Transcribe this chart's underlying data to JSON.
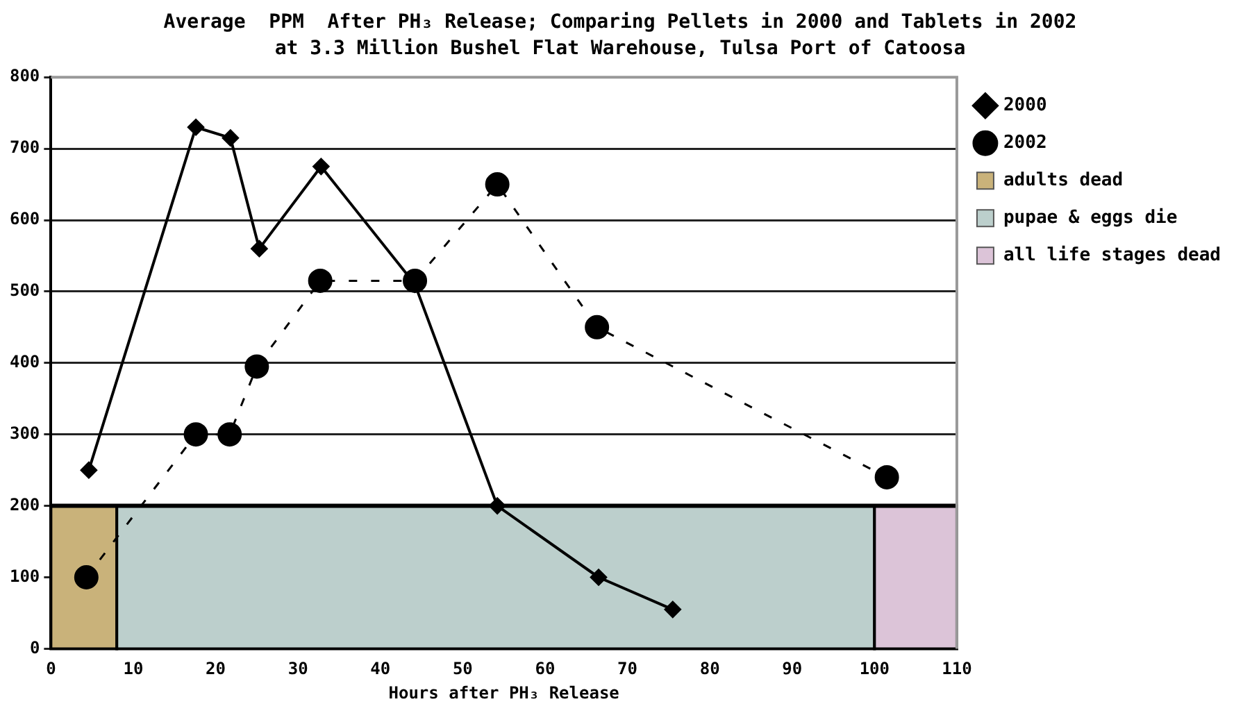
{
  "chart_data": {
    "type": "line",
    "title": "Average  PPM  After PH₃ Release; Comparing Pellets in 2000 and Tablets in 2002",
    "subtitle": "at 3.3 Million Bushel Flat Warehouse, Tulsa Port of Catoosa",
    "xlabel": "Hours after PH₃ Release",
    "xlim": [
      0,
      110
    ],
    "xticks": [
      0,
      10,
      20,
      30,
      40,
      50,
      60,
      70,
      80,
      90,
      100,
      110
    ],
    "ylim": [
      0,
      800
    ],
    "yticks": [
      0,
      100,
      200,
      300,
      400,
      500,
      600,
      700,
      800
    ],
    "grid": "y",
    "legend": "top right",
    "series": [
      {
        "name": "2000",
        "color": "#000000",
        "marker": "diamond",
        "line_style": "solid",
        "x": [
          4.6,
          17.6,
          21.8,
          25.3,
          32.8,
          44.2,
          54.2,
          66.5,
          75.5
        ],
        "values": [
          250,
          730,
          715,
          560,
          675,
          510,
          200,
          100,
          55
        ]
      },
      {
        "name": "2002",
        "color": "#000000",
        "marker": "circle",
        "line_style": "dashed",
        "x": [
          4.3,
          17.6,
          21.7,
          25,
          32.7,
          44.2,
          54.2,
          66.3,
          101.5
        ],
        "values": [
          100,
          300,
          300,
          395,
          515,
          515,
          650,
          450,
          240
        ]
      }
    ],
    "ref_lines": [
      {
        "axis": "y",
        "value": 200,
        "color": "#000000"
      }
    ],
    "bands": [
      {
        "axis": "x",
        "from": 0,
        "to": 8,
        "label": "adults dead",
        "color": "#c9b27a"
      },
      {
        "axis": "x",
        "from": 8,
        "to": 100,
        "label": "pupae & eggs die",
        "color": "#bccfcc"
      },
      {
        "axis": "x",
        "from": 100,
        "to": 110,
        "label": "all life stages dead",
        "color": "#dcc4d8"
      }
    ]
  }
}
